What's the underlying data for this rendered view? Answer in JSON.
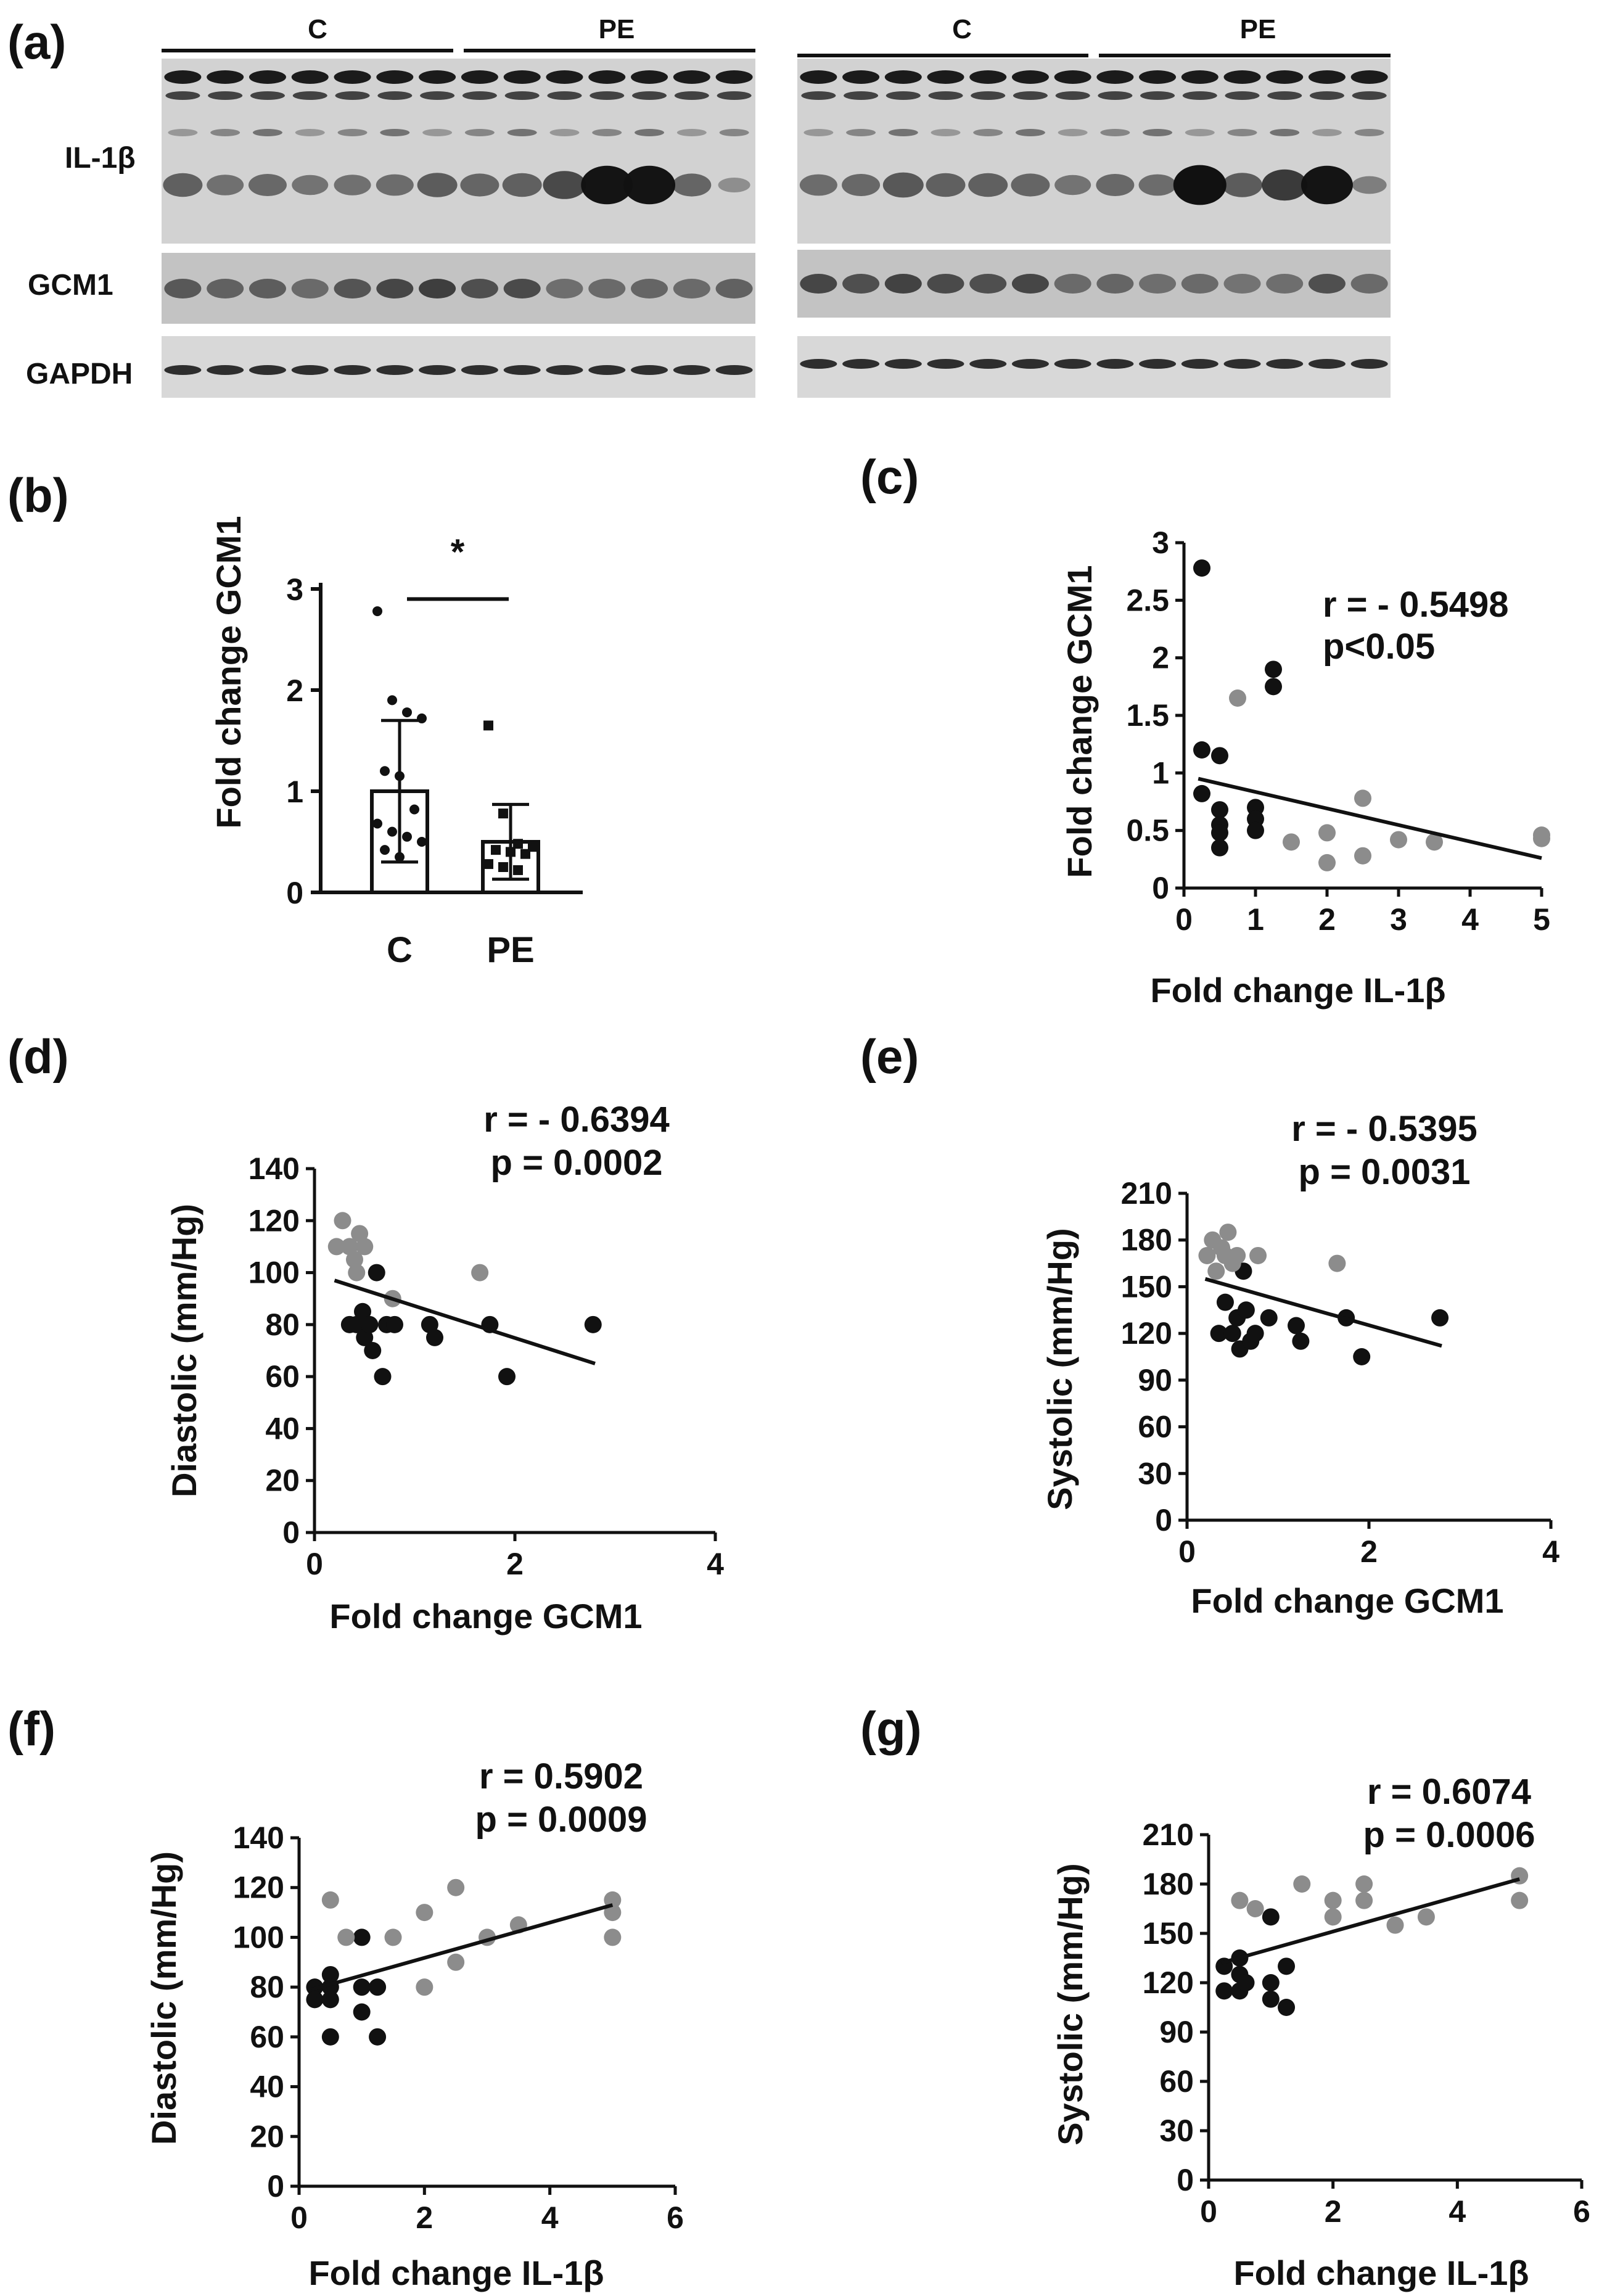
{
  "colors": {
    "ink": "#111111",
    "control": "#111111",
    "preeclampsia": "#8c8c8c",
    "blot_bg": "#cfcfcf"
  },
  "blot": {
    "panel_label": "(a)",
    "group_control": "C",
    "group_pe": "PE",
    "proteins": [
      "IL-1β",
      "GCM1",
      "GAPDH"
    ]
  },
  "chart_data": [
    {
      "id": "b",
      "type": "bar",
      "panel_label": "(b)",
      "title": "",
      "xlabel": "",
      "ylabel": "Fold change GCM1",
      "categories": [
        "C",
        "PE"
      ],
      "values": [
        1.0,
        0.5
      ],
      "sd": [
        0.7,
        0.37
      ],
      "ylim": [
        0,
        3
      ],
      "yticks": [
        0,
        1,
        2,
        3
      ],
      "significance": "*",
      "points": [
        [
          2.78,
          1.9,
          1.78,
          1.72,
          1.2,
          1.15,
          0.82,
          0.68,
          0.6,
          0.55,
          0.5,
          0.42,
          0.35
        ],
        [
          1.65,
          0.78,
          0.48,
          0.45,
          0.42,
          0.4,
          0.38,
          0.28,
          0.25,
          0.22
        ]
      ]
    },
    {
      "id": "c",
      "type": "scatter",
      "panel_label": "(c)",
      "xlabel": "Fold change IL-1β",
      "ylabel": "Fold change GCM1",
      "xlim": [
        0,
        5
      ],
      "ylim": [
        0,
        3
      ],
      "xticks": [
        0,
        1,
        2,
        3,
        4,
        5
      ],
      "yticks": [
        0,
        0.5,
        1,
        1.5,
        2,
        2.5,
        3
      ],
      "stats": [
        "r = - 0.5498",
        "p<0.05"
      ],
      "fit": [
        [
          0.2,
          0.95
        ],
        [
          5.0,
          0.26
        ]
      ],
      "series": [
        {
          "name": "C",
          "color": "#111111",
          "points": [
            [
              0.25,
              2.78
            ],
            [
              0.25,
              1.2
            ],
            [
              0.25,
              0.82
            ],
            [
              0.5,
              1.15
            ],
            [
              0.5,
              0.68
            ],
            [
              0.5,
              0.55
            ],
            [
              0.5,
              0.48
            ],
            [
              0.5,
              0.35
            ],
            [
              1.0,
              0.7
            ],
            [
              1.0,
              0.6
            ],
            [
              1.0,
              0.5
            ],
            [
              1.25,
              1.9
            ],
            [
              1.25,
              1.75
            ]
          ]
        },
        {
          "name": "PE",
          "color": "#8c8c8c",
          "points": [
            [
              0.75,
              1.65
            ],
            [
              1.5,
              0.4
            ],
            [
              2.0,
              0.48
            ],
            [
              2.0,
              0.22
            ],
            [
              2.5,
              0.78
            ],
            [
              2.5,
              0.28
            ],
            [
              3.0,
              0.42
            ],
            [
              3.5,
              0.4
            ],
            [
              5.0,
              0.46
            ],
            [
              5.0,
              0.43
            ]
          ]
        }
      ]
    },
    {
      "id": "d",
      "type": "scatter",
      "panel_label": "(d)",
      "xlabel": "Fold change GCM1",
      "ylabel": "Diastolic (mm/Hg)",
      "xlim": [
        0,
        4
      ],
      "ylim": [
        0,
        140
      ],
      "xticks": [
        0,
        2,
        4
      ],
      "yticks": [
        0,
        20,
        40,
        60,
        80,
        100,
        120,
        140
      ],
      "stats": [
        "r = - 0.6394",
        "p = 0.0002"
      ],
      "fit": [
        [
          0.2,
          97
        ],
        [
          2.8,
          65
        ]
      ],
      "series": [
        {
          "name": "C",
          "color": "#111111",
          "points": [
            [
              0.35,
              80
            ],
            [
              0.42,
              80
            ],
            [
              0.48,
              85
            ],
            [
              0.5,
              75
            ],
            [
              0.55,
              80
            ],
            [
              0.58,
              70
            ],
            [
              0.62,
              100
            ],
            [
              0.68,
              60
            ],
            [
              0.72,
              80
            ],
            [
              0.8,
              80
            ],
            [
              1.15,
              80
            ],
            [
              1.2,
              75
            ],
            [
              1.75,
              80
            ],
            [
              1.92,
              60
            ],
            [
              2.78,
              80
            ]
          ]
        },
        {
          "name": "PE",
          "color": "#8c8c8c",
          "points": [
            [
              0.22,
              110
            ],
            [
              0.28,
              120
            ],
            [
              0.35,
              110
            ],
            [
              0.4,
              105
            ],
            [
              0.42,
              100
            ],
            [
              0.45,
              115
            ],
            [
              0.5,
              110
            ],
            [
              0.78,
              90
            ],
            [
              1.65,
              100
            ]
          ]
        }
      ]
    },
    {
      "id": "e",
      "type": "scatter",
      "panel_label": "(e)",
      "xlabel": "Fold change GCM1",
      "ylabel": "Systolic (mm/Hg)",
      "xlim": [
        0,
        4
      ],
      "ylim": [
        0,
        210
      ],
      "xticks": [
        0,
        2,
        4
      ],
      "yticks": [
        0,
        30,
        60,
        90,
        120,
        150,
        180,
        210
      ],
      "stats": [
        "r = - 0.5395",
        "p = 0.0031"
      ],
      "fit": [
        [
          0.2,
          155
        ],
        [
          2.8,
          112
        ]
      ],
      "series": [
        {
          "name": "C",
          "color": "#111111",
          "points": [
            [
              0.35,
              120
            ],
            [
              0.42,
              140
            ],
            [
              0.5,
              120
            ],
            [
              0.55,
              130
            ],
            [
              0.58,
              110
            ],
            [
              0.62,
              160
            ],
            [
              0.65,
              135
            ],
            [
              0.7,
              115
            ],
            [
              0.75,
              120
            ],
            [
              0.9,
              130
            ],
            [
              1.2,
              125
            ],
            [
              1.25,
              115
            ],
            [
              1.75,
              130
            ],
            [
              1.92,
              105
            ],
            [
              2.78,
              130
            ]
          ]
        },
        {
          "name": "PE",
          "color": "#8c8c8c",
          "points": [
            [
              0.22,
              170
            ],
            [
              0.28,
              180
            ],
            [
              0.32,
              160
            ],
            [
              0.38,
              175
            ],
            [
              0.42,
              170
            ],
            [
              0.45,
              185
            ],
            [
              0.5,
              165
            ],
            [
              0.55,
              170
            ],
            [
              0.78,
              170
            ],
            [
              1.65,
              165
            ]
          ]
        }
      ]
    },
    {
      "id": "f",
      "type": "scatter",
      "panel_label": "(f)",
      "xlabel": "Fold change IL-1β",
      "ylabel": "Diastolic (mm/Hg)",
      "xlim": [
        0,
        6
      ],
      "ylim": [
        0,
        140
      ],
      "xticks": [
        0,
        2,
        4,
        6
      ],
      "yticks": [
        0,
        20,
        40,
        60,
        80,
        100,
        120,
        140
      ],
      "stats": [
        "r = 0.5902",
        "p = 0.0009"
      ],
      "fit": [
        [
          0.2,
          79
        ],
        [
          5.0,
          113
        ]
      ],
      "series": [
        {
          "name": "C",
          "color": "#111111",
          "points": [
            [
              0.25,
              80
            ],
            [
              0.25,
              75
            ],
            [
              0.5,
              85
            ],
            [
              0.5,
              80
            ],
            [
              0.5,
              75
            ],
            [
              0.5,
              60
            ],
            [
              1.0,
              100
            ],
            [
              1.0,
              80
            ],
            [
              1.0,
              70
            ],
            [
              1.25,
              80
            ],
            [
              1.25,
              60
            ]
          ]
        },
        {
          "name": "PE",
          "color": "#8c8c8c",
          "points": [
            [
              0.5,
              115
            ],
            [
              0.75,
              100
            ],
            [
              1.5,
              100
            ],
            [
              2.0,
              110
            ],
            [
              2.0,
              80
            ],
            [
              2.5,
              120
            ],
            [
              2.5,
              90
            ],
            [
              3.0,
              100
            ],
            [
              3.5,
              105
            ],
            [
              5.0,
              115
            ],
            [
              5.0,
              110
            ],
            [
              5.0,
              100
            ]
          ]
        }
      ]
    },
    {
      "id": "g",
      "type": "scatter",
      "panel_label": "(g)",
      "xlabel": "Fold change IL-1β",
      "ylabel": "Systolic (mm/Hg)",
      "xlim": [
        0,
        6
      ],
      "ylim": [
        0,
        210
      ],
      "xticks": [
        0,
        2,
        4,
        6
      ],
      "yticks": [
        0,
        30,
        60,
        90,
        120,
        150,
        180,
        210
      ],
      "stats": [
        "r = 0.6074",
        "p = 0.0006"
      ],
      "fit": [
        [
          0.2,
          132
        ],
        [
          5.0,
          183
        ]
      ],
      "series": [
        {
          "name": "C",
          "color": "#111111",
          "points": [
            [
              0.25,
              130
            ],
            [
              0.25,
              115
            ],
            [
              0.5,
              135
            ],
            [
              0.5,
              125
            ],
            [
              0.5,
              115
            ],
            [
              0.6,
              120
            ],
            [
              1.0,
              160
            ],
            [
              1.0,
              120
            ],
            [
              1.0,
              110
            ],
            [
              1.25,
              130
            ],
            [
              1.25,
              105
            ]
          ]
        },
        {
          "name": "PE",
          "color": "#8c8c8c",
          "points": [
            [
              0.5,
              170
            ],
            [
              0.75,
              165
            ],
            [
              1.5,
              180
            ],
            [
              2.0,
              170
            ],
            [
              2.0,
              160
            ],
            [
              2.5,
              180
            ],
            [
              2.5,
              170
            ],
            [
              3.0,
              155
            ],
            [
              3.5,
              160
            ],
            [
              5.0,
              185
            ],
            [
              5.0,
              170
            ]
          ]
        }
      ]
    }
  ]
}
